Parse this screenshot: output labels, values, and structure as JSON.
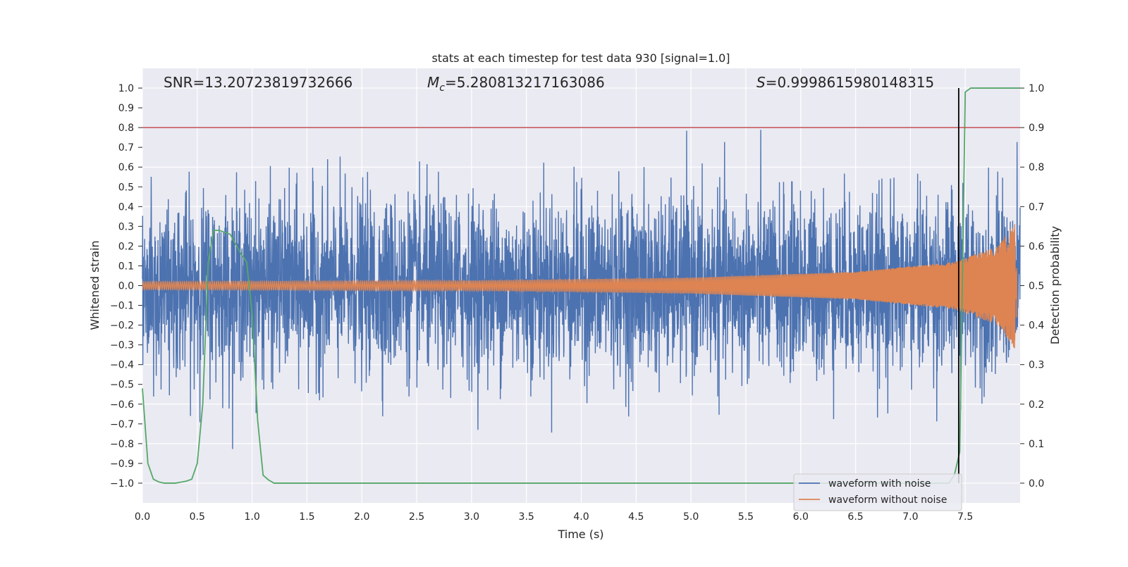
{
  "chart_data": {
    "type": "line",
    "title": "stats at each timestep for test data 930 [signal=1.0]",
    "xlabel": "Time (s)",
    "ylabel_left": "Whitened strain",
    "ylabel_right": "Detection probability",
    "xlim": [
      0.0,
      8.0
    ],
    "ylim_left": [
      -1.1,
      1.1
    ],
    "ylim_right": [
      -0.05,
      1.05
    ],
    "x_ticks": [
      "0.0",
      "0.5",
      "1.0",
      "1.5",
      "2.0",
      "2.5",
      "3.0",
      "3.5",
      "4.0",
      "4.5",
      "5.0",
      "5.5",
      "6.0",
      "6.5",
      "7.0",
      "7.5"
    ],
    "y_ticks_left": [
      "1.0",
      "0.9",
      "0.8",
      "0.7",
      "0.6",
      "0.5",
      "0.4",
      "0.3",
      "0.2",
      "0.1",
      "0.0",
      "−0.1",
      "−0.2",
      "−0.3",
      "−0.4",
      "−0.5",
      "−0.6",
      "−0.7",
      "−0.8",
      "−0.9",
      "−1.0"
    ],
    "y_ticks_right": [
      "1.0",
      "0.9",
      "0.8",
      "0.7",
      "0.6",
      "0.5",
      "0.4",
      "0.3",
      "0.2",
      "0.1",
      "0.0"
    ],
    "grid": true,
    "annotations": {
      "snr": "SNR=13.20723819732666",
      "mc_symbol": "M",
      "mc_sub": "c",
      "mc_value": "=5.280813217163086",
      "s_symbol": "S",
      "s_value": "=0.9998615980148315"
    },
    "legend": {
      "placement": "lower-right",
      "entries": [
        {
          "label": "waveform with noise",
          "color": "#4c72b0"
        },
        {
          "label": "waveform without noise",
          "color": "#dd8452"
        }
      ]
    },
    "threshold_line": {
      "axis": "right",
      "y": 0.9,
      "color": "#c44e52"
    },
    "detection_marker": {
      "x": 7.44,
      "color": "#000000"
    },
    "series": [
      {
        "name": "waveform with noise",
        "axis": "left",
        "color": "#4c72b0",
        "style": "dense-noise",
        "approx_envelope": [
          0.5,
          0.5
        ]
      },
      {
        "name": "waveform without noise",
        "axis": "left",
        "color": "#dd8452",
        "style": "chirp",
        "amplitude_points": [
          [
            0.0,
            0.02
          ],
          [
            3.0,
            0.025
          ],
          [
            5.0,
            0.04
          ],
          [
            6.5,
            0.07
          ],
          [
            7.4,
            0.12
          ],
          [
            7.8,
            0.2
          ],
          [
            7.95,
            0.32
          ]
        ]
      },
      {
        "name": "Detection probability",
        "axis": "right",
        "color": "#55a868",
        "x": [
          0.0,
          0.05,
          0.1,
          0.15,
          0.2,
          0.3,
          0.4,
          0.45,
          0.5,
          0.55,
          0.6,
          0.65,
          0.7,
          0.8,
          0.9,
          0.95,
          1.0,
          1.05,
          1.1,
          1.15,
          1.2,
          7.35,
          7.4,
          7.45,
          7.5,
          7.55,
          7.6,
          8.0
        ],
        "values": [
          0.24,
          0.05,
          0.01,
          0.003,
          0.0,
          0.0,
          0.005,
          0.01,
          0.05,
          0.2,
          0.56,
          0.64,
          0.64,
          0.63,
          0.58,
          0.56,
          0.43,
          0.16,
          0.02,
          0.008,
          0.0,
          0.0,
          0.02,
          0.08,
          0.99,
          1.0,
          1.0,
          1.0
        ]
      }
    ]
  }
}
